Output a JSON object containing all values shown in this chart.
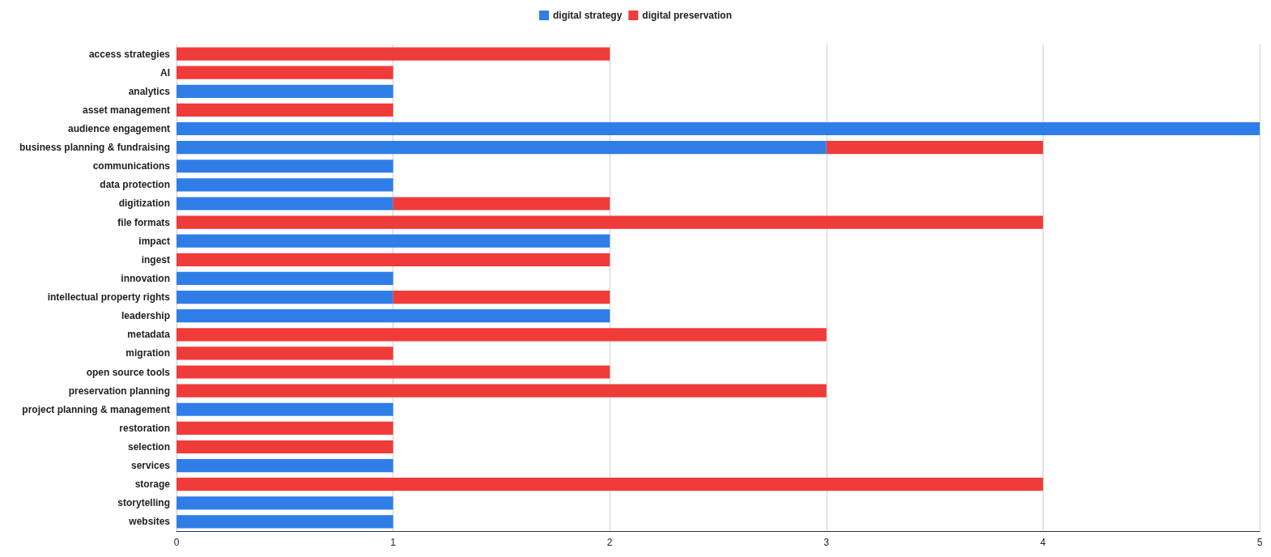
{
  "chart_data": {
    "type": "bar",
    "orientation": "horizontal",
    "stacked": true,
    "categories": [
      "access strategies",
      "AI",
      "analytics",
      "asset management",
      "audience engagement",
      "business planning & fundraising",
      "communications",
      "data protection",
      "digitization",
      "file formats",
      "impact",
      "ingest",
      "innovation",
      "intellectual property rights",
      "leadership",
      "metadata",
      "migration",
      "open source tools",
      "preservation planning",
      "project planning & management",
      "restoration",
      "selection",
      "services",
      "storage",
      "storytelling",
      "websites"
    ],
    "series": [
      {
        "name": "digital strategy",
        "color": "#2f7ee8",
        "values": [
          0,
          0,
          1,
          0,
          5,
          3,
          1,
          1,
          1,
          0,
          2,
          0,
          1,
          1,
          2,
          0,
          0,
          0,
          0,
          1,
          0,
          0,
          1,
          0,
          1,
          1
        ]
      },
      {
        "name": "digital preservation",
        "color": "#ef3b39",
        "values": [
          2,
          1,
          0,
          1,
          0,
          1,
          0,
          0,
          1,
          4,
          0,
          2,
          0,
          1,
          0,
          3,
          1,
          2,
          3,
          0,
          1,
          1,
          0,
          4,
          0,
          0
        ]
      }
    ],
    "xlim": [
      0,
      5
    ],
    "xticks": [
      0,
      1,
      2,
      3,
      4,
      5
    ],
    "grid": "x",
    "legend": "top"
  }
}
